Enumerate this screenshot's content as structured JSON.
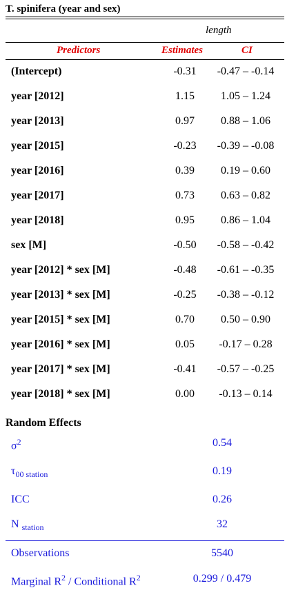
{
  "title": "T. spinifera (year and sex)",
  "dependent_variable": "length",
  "headers": {
    "predictors": "Predictors",
    "estimates": "Estimates",
    "ci": "CI"
  },
  "fixed_effects": [
    {
      "predictor": "(Intercept)",
      "estimate": "-0.31",
      "ci": "-0.47 – -0.14"
    },
    {
      "predictor": "year [2012]",
      "estimate": "1.15",
      "ci": "1.05 – 1.24"
    },
    {
      "predictor": "year [2013]",
      "estimate": "0.97",
      "ci": "0.88 – 1.06"
    },
    {
      "predictor": "year [2015]",
      "estimate": "-0.23",
      "ci": "-0.39 – -0.08"
    },
    {
      "predictor": "year [2016]",
      "estimate": "0.39",
      "ci": "0.19 – 0.60"
    },
    {
      "predictor": "year [2017]",
      "estimate": "0.73",
      "ci": "0.63 – 0.82"
    },
    {
      "predictor": "year [2018]",
      "estimate": "0.95",
      "ci": "0.86 – 1.04"
    },
    {
      "predictor": "sex [M]",
      "estimate": "-0.50",
      "ci": "-0.58 – -0.42"
    },
    {
      "predictor": "year [2012] * sex [M]",
      "estimate": "-0.48",
      "ci": "-0.61 – -0.35"
    },
    {
      "predictor": "year [2013] * sex [M]",
      "estimate": "-0.25",
      "ci": "-0.38 – -0.12"
    },
    {
      "predictor": "year [2015] * sex [M]",
      "estimate": "0.70",
      "ci": "0.50 – 0.90"
    },
    {
      "predictor": "year [2016] * sex [M]",
      "estimate": "0.05",
      "ci": "-0.17 – 0.28"
    },
    {
      "predictor": "year [2017] * sex [M]",
      "estimate": "-0.41",
      "ci": "-0.57 – -0.25"
    },
    {
      "predictor": "year [2018] * sex [M]",
      "estimate": "0.00",
      "ci": "-0.13 – 0.14"
    }
  ],
  "random_effects": {
    "section_label": "Random Effects",
    "sigma2": {
      "symbol": "σ",
      "sup": "2",
      "value": "0.54"
    },
    "tau00": {
      "symbol": "τ",
      "sub": "00 station",
      "value": "0.19"
    },
    "icc": {
      "label": "ICC",
      "value": "0.26"
    },
    "n": {
      "label": "N",
      "sub": "station",
      "value": "32"
    }
  },
  "model_stats": {
    "observations": {
      "label": "Observations",
      "value": "5540"
    },
    "r2": {
      "label_a": "Marginal R",
      "sup_a": "2",
      "label_b": " / Conditional R",
      "sup_b": "2",
      "value": "0.299 / 0.479"
    }
  },
  "colors": {
    "header_red": "#e00000",
    "stat_blue": "#1a1adc"
  }
}
